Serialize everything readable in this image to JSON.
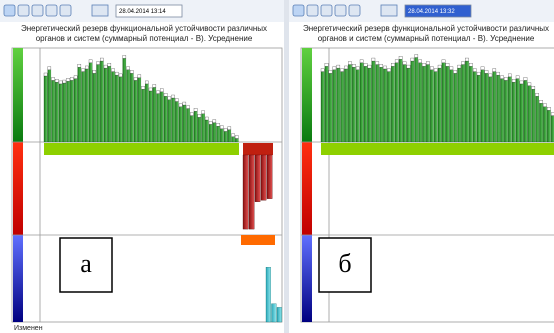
{
  "panels": [
    {
      "label": "а",
      "timestamp": "28.04.2014 13:14",
      "title": [
        "Энергетический резерв функциональной устойчивости различных",
        "органов и систем (суммарный потенциал - В). Усреднение"
      ],
      "green": [
        75,
        82,
        70,
        68,
        66,
        67,
        69,
        70,
        72,
        85,
        80,
        83,
        90,
        78,
        88,
        92,
        84,
        86,
        80,
        76,
        74,
        95,
        82,
        78,
        70,
        73,
        60,
        66,
        58,
        62,
        55,
        57,
        52,
        48,
        50,
        46,
        40,
        42,
        38,
        30,
        35,
        28,
        32,
        25,
        20,
        22,
        18,
        15,
        12,
        14,
        6,
        4
      ],
      "red": [
        95,
        95,
        60,
        58,
        56
      ],
      "blue": [
        75,
        25,
        20
      ]
    },
    {
      "label": "б",
      "timestamp": "28.04.2014 13:32",
      "title": [
        "Энергетический резерв функциональной устойчивости различных",
        "органов и систем (суммарный потенциал - В). Усреднение"
      ],
      "green": [
        80,
        86,
        78,
        82,
        84,
        80,
        83,
        88,
        85,
        82,
        90,
        86,
        84,
        92,
        88,
        85,
        83,
        80,
        86,
        90,
        94,
        88,
        84,
        92,
        96,
        90,
        86,
        88,
        82,
        80,
        84,
        90,
        86,
        82,
        78,
        84,
        88,
        92,
        86,
        80,
        76,
        82,
        78,
        74,
        80,
        76,
        72,
        70,
        74,
        68,
        72,
        66,
        70,
        64,
        60,
        52,
        44,
        40,
        36,
        30
      ],
      "red": [],
      "blue": []
    }
  ],
  "footer": "Изменен"
}
